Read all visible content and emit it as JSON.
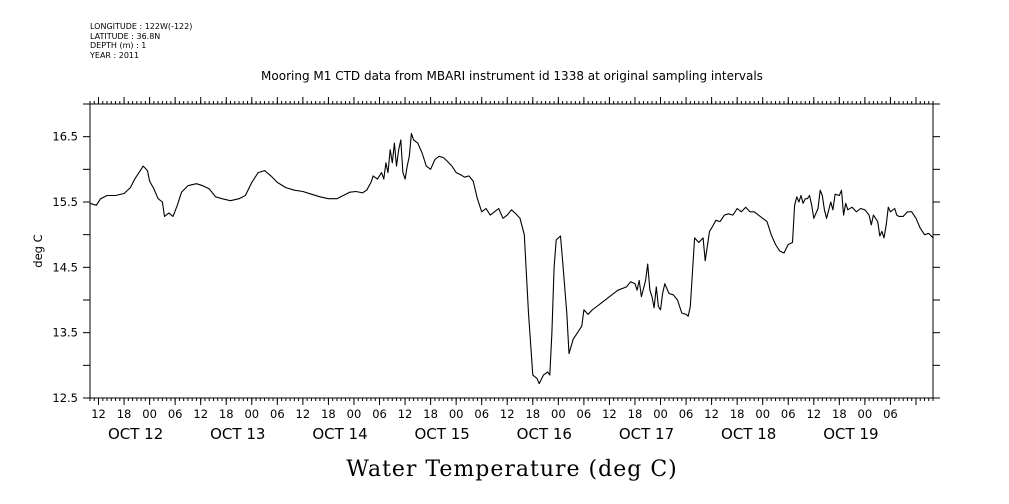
{
  "header": {
    "longitude": "LONGITUDE : 122W(-122)",
    "latitude": "LATITUDE : 36.8N",
    "depth": "DEPTH (m) : 1",
    "year": "YEAR : 2011"
  },
  "chart_data": {
    "type": "line",
    "title": "Mooring M1 CTD data from MBARI instrument id 1338 at original sampling intervals",
    "xlabel": "Water Temperature (deg C)",
    "ylabel": "deg C",
    "ylim": [
      12.5,
      17.0
    ],
    "yticks": [
      "12.5",
      "13.5",
      "14.5",
      "15.5",
      "16.5"
    ],
    "xlim_hours": [
      10,
      208
    ],
    "hour_ticks": [
      "12",
      "18",
      "00",
      "06",
      "12",
      "18",
      "00",
      "06",
      "12",
      "18",
      "00",
      "06",
      "12",
      "18",
      "00",
      "06",
      "12",
      "18",
      "00",
      "06",
      "12",
      "18",
      "00",
      "06",
      "12",
      "18",
      "00",
      "06",
      "12",
      "18",
      "00",
      "06"
    ],
    "date_ticks": [
      "OCT 12",
      "OCT 13",
      "OCT 14",
      "OCT 15",
      "OCT 16",
      "OCT 17",
      "OCT 18",
      "OCT 19"
    ],
    "x_units": "hours since 2011-10-12 00:00",
    "grid": false,
    "series": [
      {
        "values": [
          [
            10,
            15.48
          ],
          [
            11.5,
            15.45
          ],
          [
            12.5,
            15.55
          ],
          [
            14,
            15.6
          ],
          [
            16,
            15.6
          ],
          [
            18,
            15.63
          ],
          [
            19.5,
            15.72
          ],
          [
            20.5,
            15.85
          ],
          [
            21.5,
            15.95
          ],
          [
            22.5,
            16.05
          ],
          [
            23.5,
            15.98
          ],
          [
            24,
            15.82
          ],
          [
            25,
            15.7
          ],
          [
            26,
            15.55
          ],
          [
            27,
            15.5
          ],
          [
            27.5,
            15.28
          ],
          [
            28.5,
            15.33
          ],
          [
            29.5,
            15.28
          ],
          [
            30.5,
            15.45
          ],
          [
            31.5,
            15.65
          ],
          [
            33,
            15.75
          ],
          [
            35,
            15.78
          ],
          [
            36.5,
            15.75
          ],
          [
            38,
            15.7
          ],
          [
            39.5,
            15.58
          ],
          [
            41,
            15.55
          ],
          [
            43,
            15.52
          ],
          [
            45,
            15.55
          ],
          [
            46.5,
            15.6
          ],
          [
            48,
            15.8
          ],
          [
            49.5,
            15.95
          ],
          [
            51,
            15.98
          ],
          [
            52.5,
            15.9
          ],
          [
            54,
            15.8
          ],
          [
            56,
            15.72
          ],
          [
            58,
            15.68
          ],
          [
            60,
            15.66
          ],
          [
            62,
            15.62
          ],
          [
            64,
            15.58
          ],
          [
            66,
            15.55
          ],
          [
            68,
            15.55
          ],
          [
            69.5,
            15.6
          ],
          [
            71,
            15.65
          ],
          [
            72.5,
            15.66
          ],
          [
            74,
            15.64
          ],
          [
            75,
            15.68
          ],
          [
            76,
            15.8
          ],
          [
            76.5,
            15.9
          ],
          [
            77.5,
            15.85
          ],
          [
            78.5,
            15.95
          ],
          [
            79,
            15.85
          ],
          [
            79.5,
            16.1
          ],
          [
            80,
            15.95
          ],
          [
            80.5,
            16.3
          ],
          [
            81,
            16.1
          ],
          [
            81.5,
            16.4
          ],
          [
            82,
            16.05
          ],
          [
            82.5,
            16.3
          ],
          [
            83,
            16.45
          ],
          [
            83.5,
            15.95
          ],
          [
            84,
            15.85
          ],
          [
            84.5,
            16.05
          ],
          [
            85,
            16.2
          ],
          [
            85.5,
            16.55
          ],
          [
            86,
            16.45
          ],
          [
            87,
            16.4
          ],
          [
            88,
            16.25
          ],
          [
            89,
            16.05
          ],
          [
            90,
            16.0
          ],
          [
            91,
            16.15
          ],
          [
            92,
            16.2
          ],
          [
            93,
            16.18
          ],
          [
            94,
            16.12
          ],
          [
            95,
            16.05
          ],
          [
            96,
            15.95
          ],
          [
            97,
            15.92
          ],
          [
            98,
            15.88
          ],
          [
            99,
            15.9
          ],
          [
            100,
            15.82
          ],
          [
            101,
            15.55
          ],
          [
            102,
            15.35
          ],
          [
            103,
            15.4
          ],
          [
            104,
            15.3
          ],
          [
            105,
            15.35
          ],
          [
            106,
            15.4
          ],
          [
            107,
            15.25
          ],
          [
            108,
            15.3
          ],
          [
            109,
            15.38
          ],
          [
            110,
            15.32
          ],
          [
            111,
            15.25
          ],
          [
            112,
            15.0
          ],
          [
            113,
            13.8
          ],
          [
            114,
            12.85
          ],
          [
            115,
            12.8
          ],
          [
            115.5,
            12.72
          ],
          [
            116.5,
            12.85
          ],
          [
            117.5,
            12.9
          ],
          [
            118,
            12.85
          ],
          [
            118.5,
            13.5
          ],
          [
            119,
            14.5
          ],
          [
            119.5,
            14.92
          ],
          [
            120.5,
            14.98
          ],
          [
            121,
            14.6
          ],
          [
            122,
            13.8
          ],
          [
            122.5,
            13.18
          ],
          [
            123.5,
            13.4
          ],
          [
            124.5,
            13.5
          ],
          [
            125.5,
            13.6
          ],
          [
            126,
            13.85
          ],
          [
            127,
            13.78
          ],
          [
            128,
            13.85
          ],
          [
            129,
            13.9
          ],
          [
            130,
            13.95
          ],
          [
            132,
            14.05
          ],
          [
            134,
            14.15
          ],
          [
            136,
            14.2
          ],
          [
            137,
            14.28
          ],
          [
            138,
            14.25
          ],
          [
            138.5,
            14.15
          ],
          [
            139,
            14.3
          ],
          [
            139.5,
            14.05
          ],
          [
            140.5,
            14.3
          ],
          [
            141,
            14.55
          ],
          [
            141.5,
            14.15
          ],
          [
            142,
            14.05
          ],
          [
            142.5,
            13.88
          ],
          [
            143,
            14.2
          ],
          [
            143.5,
            13.9
          ],
          [
            144,
            13.85
          ],
          [
            144.5,
            14.1
          ],
          [
            145,
            14.25
          ],
          [
            146,
            14.1
          ],
          [
            147,
            14.08
          ],
          [
            148,
            14.0
          ],
          [
            149,
            13.8
          ],
          [
            150,
            13.78
          ],
          [
            150.5,
            13.75
          ],
          [
            151,
            13.9
          ],
          [
            152,
            14.95
          ],
          [
            153,
            14.88
          ],
          [
            154,
            14.95
          ],
          [
            154.5,
            14.6
          ],
          [
            155.5,
            15.05
          ],
          [
            156,
            15.1
          ],
          [
            157,
            15.22
          ],
          [
            158,
            15.2
          ],
          [
            159,
            15.3
          ],
          [
            160,
            15.32
          ],
          [
            161,
            15.3
          ],
          [
            162,
            15.4
          ],
          [
            163,
            15.35
          ],
          [
            164,
            15.42
          ],
          [
            165,
            15.35
          ],
          [
            166,
            15.35
          ],
          [
            167,
            15.3
          ],
          [
            168,
            15.25
          ],
          [
            169,
            15.2
          ],
          [
            170,
            15.0
          ],
          [
            171,
            14.85
          ],
          [
            172,
            14.75
          ],
          [
            173,
            14.72
          ],
          [
            174,
            14.85
          ],
          [
            175,
            14.88
          ],
          [
            175.5,
            15.45
          ],
          [
            176,
            15.58
          ],
          [
            176.5,
            15.5
          ],
          [
            177,
            15.6
          ],
          [
            177.5,
            15.48
          ],
          [
            178,
            15.55
          ],
          [
            178.5,
            15.55
          ],
          [
            179,
            15.6
          ],
          [
            179.5,
            15.45
          ],
          [
            180,
            15.25
          ],
          [
            181,
            15.4
          ],
          [
            181.5,
            15.68
          ],
          [
            182,
            15.6
          ],
          [
            182.5,
            15.38
          ],
          [
            183,
            15.25
          ],
          [
            184,
            15.5
          ],
          [
            184.5,
            15.38
          ],
          [
            185,
            15.62
          ],
          [
            186,
            15.6
          ],
          [
            186.5,
            15.68
          ],
          [
            187,
            15.3
          ],
          [
            187.5,
            15.48
          ],
          [
            188,
            15.38
          ],
          [
            189,
            15.42
          ],
          [
            190,
            15.35
          ],
          [
            191,
            15.4
          ],
          [
            192,
            15.38
          ],
          [
            193,
            15.3
          ],
          [
            193.5,
            15.15
          ],
          [
            194,
            15.3
          ],
          [
            195,
            15.2
          ],
          [
            195.5,
            14.98
          ],
          [
            196,
            15.05
          ],
          [
            196.5,
            14.95
          ],
          [
            197,
            15.15
          ],
          [
            197.5,
            15.42
          ],
          [
            198,
            15.35
          ],
          [
            199,
            15.4
          ],
          [
            199.5,
            15.3
          ],
          [
            200,
            15.28
          ],
          [
            201,
            15.28
          ],
          [
            202,
            15.35
          ],
          [
            203,
            15.35
          ],
          [
            204,
            15.25
          ],
          [
            205,
            15.1
          ],
          [
            206,
            15.0
          ],
          [
            207,
            15.02
          ],
          [
            208,
            14.95
          ]
        ]
      }
    ]
  }
}
